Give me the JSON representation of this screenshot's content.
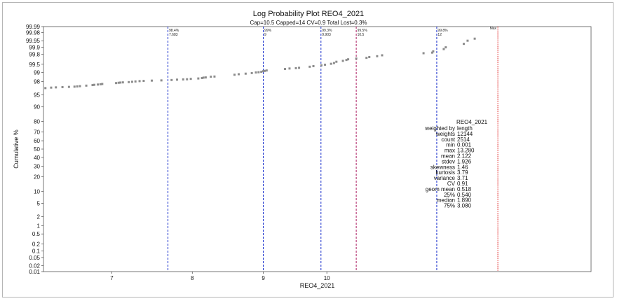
{
  "chart_data": {
    "type": "scatter",
    "title": "Log Probability Plot REO4_2021",
    "subtitle": "Cap=10.5 Capped=14 CV=0.9 Total Lost=0.3%",
    "xlabel": "REO4_2021",
    "ylabel": "Cumulative %",
    "x_scale": "log",
    "y_scale": "probability",
    "xlim": [
      6.25,
      15.5
    ],
    "x_ticks": [
      7,
      8,
      9,
      10
    ],
    "y_ticks": [
      "0.01",
      "0.02",
      "0.05",
      "0.1",
      "0.2",
      "0.5",
      "1",
      "2",
      "5",
      "10",
      "20",
      "30",
      "40",
      "50",
      "60",
      "70",
      "80",
      "90",
      "95",
      "98",
      "99",
      "99.5",
      "99.8",
      "99.9",
      "99.95",
      "99.98",
      "99.99"
    ],
    "y_tick_values": [
      0.01,
      0.02,
      0.05,
      0.1,
      0.2,
      0.5,
      1,
      2,
      5,
      10,
      20,
      30,
      40,
      50,
      60,
      70,
      80,
      90,
      95,
      98,
      99,
      99.5,
      99.8,
      99.9,
      99.95,
      99.98,
      99.99
    ],
    "points": [
      [
        6.27,
        96.8
      ],
      [
        6.33,
        96.9
      ],
      [
        6.38,
        96.95
      ],
      [
        6.45,
        97.0
      ],
      [
        6.52,
        97.05
      ],
      [
        6.58,
        97.1
      ],
      [
        6.61,
        97.15
      ],
      [
        6.64,
        97.2
      ],
      [
        6.71,
        97.3
      ],
      [
        6.78,
        97.4
      ],
      [
        6.8,
        97.45
      ],
      [
        6.84,
        97.5
      ],
      [
        6.87,
        97.55
      ],
      [
        6.89,
        97.6
      ],
      [
        7.05,
        97.75
      ],
      [
        7.08,
        97.8
      ],
      [
        7.1,
        97.83
      ],
      [
        7.13,
        97.86
      ],
      [
        7.2,
        97.9
      ],
      [
        7.24,
        97.95
      ],
      [
        7.28,
        98.0
      ],
      [
        7.33,
        98.05
      ],
      [
        7.38,
        98.08
      ],
      [
        7.48,
        98.12
      ],
      [
        7.6,
        98.15
      ],
      [
        7.73,
        98.2
      ],
      [
        7.8,
        98.25
      ],
      [
        7.88,
        98.28
      ],
      [
        7.93,
        98.3
      ],
      [
        7.98,
        98.35
      ],
      [
        8.08,
        98.4
      ],
      [
        8.13,
        98.45
      ],
      [
        8.15,
        98.5
      ],
      [
        8.18,
        98.52
      ],
      [
        8.25,
        98.6
      ],
      [
        8.3,
        98.62
      ],
      [
        8.58,
        98.8
      ],
      [
        8.64,
        98.85
      ],
      [
        8.74,
        98.9
      ],
      [
        8.83,
        98.95
      ],
      [
        8.89,
        99.0
      ],
      [
        8.93,
        99.02
      ],
      [
        8.97,
        99.05
      ],
      [
        9.0,
        99.1
      ],
      [
        9.02,
        99.12
      ],
      [
        9.05,
        99.15
      ],
      [
        9.33,
        99.25
      ],
      [
        9.4,
        99.28
      ],
      [
        9.5,
        99.3
      ],
      [
        9.55,
        99.32
      ],
      [
        9.72,
        99.38
      ],
      [
        9.78,
        99.41
      ],
      [
        9.91,
        99.45
      ],
      [
        9.97,
        99.48
      ],
      [
        10.07,
        99.52
      ],
      [
        10.12,
        99.55
      ],
      [
        10.16,
        99.6
      ],
      [
        10.27,
        99.63
      ],
      [
        10.33,
        99.66
      ],
      [
        10.36,
        99.68
      ],
      [
        10.5,
        99.7
      ],
      [
        10.68,
        99.72
      ],
      [
        10.73,
        99.74
      ],
      [
        10.87,
        99.76
      ],
      [
        10.96,
        99.78
      ],
      [
        11.74,
        99.82
      ],
      [
        11.91,
        99.83
      ],
      [
        11.93,
        99.85
      ],
      [
        12.14,
        99.88
      ],
      [
        12.18,
        99.9
      ],
      [
        12.55,
        99.93
      ],
      [
        12.63,
        99.95
      ],
      [
        12.78,
        99.96
      ]
    ],
    "series_color": "#8c8c8c",
    "markers": [
      {
        "x": 7.683,
        "label": "98.4%",
        "value": "7.683",
        "color": "#2a3fd0"
      },
      {
        "x": 9,
        "label": "99%",
        "value": "9",
        "color": "#2a3fd0"
      },
      {
        "x": 9.903,
        "label": "99.3%",
        "value": "9.903",
        "color": "#2a3fd0"
      },
      {
        "x": 10.5,
        "label": "99.5%",
        "value": "10.5",
        "color": "#b02a6b"
      },
      {
        "x": 12,
        "label": "99.8%",
        "value": "12",
        "color": "#2a3fd0"
      },
      {
        "x": 13.28,
        "label": "Max",
        "value": "",
        "color": "#e03030"
      }
    ]
  },
  "stats": {
    "header": "REO4_2021",
    "rows": [
      {
        "label": "weighted by",
        "value": "length"
      },
      {
        "label": "weights",
        "value": "12144"
      },
      {
        "label": "count",
        "value": "2514"
      },
      {
        "label": "min",
        "value": "0.001"
      },
      {
        "label": "max",
        "value": "13.280"
      },
      {
        "label": "mean",
        "value": "2.122"
      },
      {
        "label": "stdev",
        "value": "1.926"
      },
      {
        "label": "skewness",
        "value": "1.46"
      },
      {
        "label": "kurtosis",
        "value": "3.79"
      },
      {
        "label": "variance",
        "value": "3.71"
      },
      {
        "label": "CV",
        "value": "0.91"
      },
      {
        "label": "geom mean",
        "value": "0.518"
      },
      {
        "label": "25%",
        "value": "0.540"
      },
      {
        "label": "median",
        "value": "1.890"
      },
      {
        "label": "75%",
        "value": "3.080"
      }
    ]
  }
}
